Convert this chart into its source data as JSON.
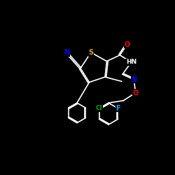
{
  "bg_color": "#000000",
  "atom_colors": {
    "N": "#0000FF",
    "O": "#FF0000",
    "S": "#DAA520",
    "Cl": "#00AA00",
    "F": "#00AAFF",
    "C": "#FFFFFF",
    "H": "#FFFFFF"
  },
  "bond_color": "#FFFFFF",
  "label_fontsize": 7,
  "figsize": [
    2.5,
    2.5
  ],
  "dpi": 100
}
